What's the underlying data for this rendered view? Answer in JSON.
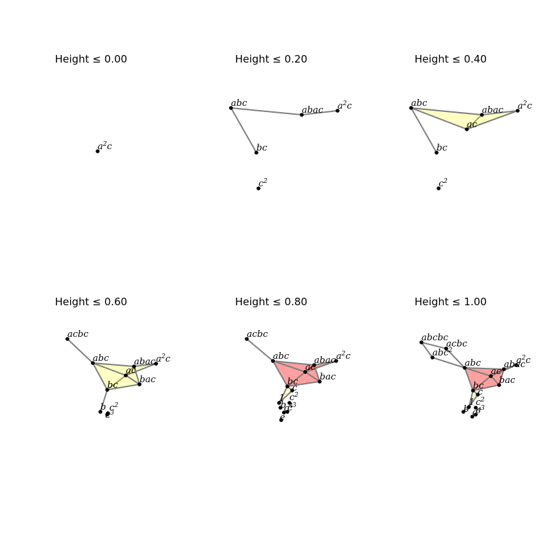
{
  "style": {
    "edge_color": "#808080",
    "vertex_color": "#000000",
    "triangle_fill": {
      "yellow": "#ffffb0",
      "red": "#ff6060"
    },
    "triangle_stroke": {
      "yellow": "#8a8a30",
      "red": "#902020"
    }
  },
  "panels": [
    {
      "title": "Height ≤ 0.00",
      "vertices": [
        {
          "id": "a2c",
          "base": "a",
          "sup": "2",
          "tail": "c"
        }
      ],
      "edges": [],
      "triangles": []
    },
    {
      "title": "Height ≤ 0.20",
      "vertices": [
        {
          "id": "abc",
          "base": "abc"
        },
        {
          "id": "abac",
          "base": "abac"
        },
        {
          "id": "a2c",
          "base": "a",
          "sup": "2",
          "tail": "c"
        },
        {
          "id": "bc",
          "base": "bc"
        },
        {
          "id": "c2",
          "base": "c",
          "sup": "2"
        }
      ],
      "edges": [
        [
          "abc",
          "abac"
        ],
        [
          "abac",
          "a2c"
        ],
        [
          "abc",
          "bc"
        ]
      ],
      "triangles": []
    },
    {
      "title": "Height ≤ 0.40",
      "vertices": [
        {
          "id": "abc",
          "base": "abc"
        },
        {
          "id": "abac",
          "base": "abac"
        },
        {
          "id": "a2c",
          "base": "a",
          "sup": "2",
          "tail": "c"
        },
        {
          "id": "ac",
          "base": "ac"
        },
        {
          "id": "bc",
          "base": "bc"
        },
        {
          "id": "c2",
          "base": "c",
          "sup": "2"
        }
      ],
      "edges": [
        [
          "abc",
          "abac"
        ],
        [
          "abac",
          "a2c"
        ],
        [
          "abc",
          "ac"
        ],
        [
          "ac",
          "a2c"
        ],
        [
          "abc",
          "bc"
        ]
      ],
      "triangles": [
        {
          "v": [
            "abc",
            "abac",
            "ac"
          ],
          "color": "yellow"
        },
        {
          "v": [
            "abac",
            "a2c",
            "ac"
          ],
          "color": "yellow"
        }
      ]
    },
    {
      "title": "Height ≤ 0.60",
      "vertices": [
        {
          "id": "acbc",
          "base": "acbc"
        },
        {
          "id": "abc",
          "base": "abc"
        },
        {
          "id": "abac",
          "base": "abac"
        },
        {
          "id": "a2c",
          "base": "a",
          "sup": "2",
          "tail": "c"
        },
        {
          "id": "ac",
          "base": "ac"
        },
        {
          "id": "bac",
          "base": "bac"
        },
        {
          "id": "bc",
          "base": "bc"
        },
        {
          "id": "b",
          "base": "b"
        },
        {
          "id": "c2",
          "base": "c",
          "sup": "2"
        },
        {
          "id": "c3",
          "base": "c",
          "sup": "3"
        }
      ],
      "edges": [
        [
          "acbc",
          "abc"
        ],
        [
          "abc",
          "abac"
        ],
        [
          "abac",
          "a2c"
        ],
        [
          "abc",
          "ac"
        ],
        [
          "ac",
          "a2c"
        ],
        [
          "abc",
          "bc"
        ],
        [
          "bc",
          "bac"
        ],
        [
          "ac",
          "bac"
        ],
        [
          "bac",
          "abac"
        ],
        [
          "bc",
          "b"
        ]
      ],
      "triangles": [
        {
          "v": [
            "abc",
            "abac",
            "ac"
          ],
          "color": "yellow"
        },
        {
          "v": [
            "abac",
            "a2c",
            "ac"
          ],
          "color": "yellow"
        },
        {
          "v": [
            "abc",
            "ac",
            "bc"
          ],
          "color": "yellow"
        },
        {
          "v": [
            "ac",
            "bac",
            "bc"
          ],
          "color": "yellow"
        },
        {
          "v": [
            "abac",
            "bac",
            "ac"
          ],
          "color": "yellow"
        }
      ]
    },
    {
      "title": "Height ≤ 0.80",
      "vertices": [
        {
          "id": "acbc",
          "base": "acbc"
        },
        {
          "id": "abc",
          "base": "abc"
        },
        {
          "id": "abac",
          "base": "abac"
        },
        {
          "id": "a2c",
          "base": "a",
          "sup": "2",
          "tail": "c"
        },
        {
          "id": "ac",
          "base": "ac"
        },
        {
          "id": "bac",
          "base": "bac"
        },
        {
          "id": "bc",
          "base": "bc"
        },
        {
          "id": "c",
          "base": "c"
        },
        {
          "id": "1",
          "base": "1"
        },
        {
          "id": "c2",
          "base": "c",
          "sup": "2"
        },
        {
          "id": "b",
          "base": "b"
        },
        {
          "id": "c3",
          "base": "c",
          "sup": "3"
        },
        {
          "id": "c4",
          "base": "c",
          "sup": "4"
        },
        {
          "id": "e",
          "base": "e"
        }
      ],
      "edges": [
        [
          "acbc",
          "abc"
        ],
        [
          "abc",
          "abac"
        ],
        [
          "abac",
          "a2c"
        ],
        [
          "abc",
          "ac"
        ],
        [
          "ac",
          "a2c"
        ],
        [
          "abc",
          "bc"
        ],
        [
          "bc",
          "bac"
        ],
        [
          "ac",
          "bac"
        ],
        [
          "bac",
          "abac"
        ],
        [
          "bc",
          "ac"
        ],
        [
          "bc",
          "1"
        ],
        [
          "bc",
          "c"
        ],
        [
          "1",
          "c"
        ]
      ],
      "triangles": [
        {
          "v": [
            "abc",
            "abac",
            "ac"
          ],
          "color": "red"
        },
        {
          "v": [
            "abac",
            "a2c",
            "ac"
          ],
          "color": "red"
        },
        {
          "v": [
            "abc",
            "ac",
            "bc"
          ],
          "color": "red"
        },
        {
          "v": [
            "ac",
            "bac",
            "bc"
          ],
          "color": "red"
        },
        {
          "v": [
            "abac",
            "bac",
            "ac"
          ],
          "color": "red"
        },
        {
          "v": [
            "bc",
            "c",
            "1"
          ],
          "color": "yellow"
        }
      ]
    },
    {
      "title": "Height ≤ 1.00",
      "vertices": [
        {
          "id": "abcbc",
          "base": "abcbc"
        },
        {
          "id": "acbc",
          "base": "acbc"
        },
        {
          "id": "abc2",
          "base": "abc",
          "sup": "2"
        },
        {
          "id": "abc",
          "base": "abc"
        },
        {
          "id": "abac",
          "base": "abac"
        },
        {
          "id": "a2c",
          "base": "a",
          "sup": "2",
          "tail": "c"
        },
        {
          "id": "ac",
          "base": "ac"
        },
        {
          "id": "bac",
          "base": "bac"
        },
        {
          "id": "bc",
          "base": "bc"
        },
        {
          "id": "c",
          "base": "c"
        },
        {
          "id": "1",
          "base": "1"
        },
        {
          "id": "c2",
          "base": "c",
          "sup": "2"
        },
        {
          "id": "b",
          "base": "b"
        },
        {
          "id": "c3",
          "base": "c",
          "sup": "3"
        },
        {
          "id": "c4",
          "base": "c",
          "sup": "4"
        }
      ],
      "edges": [
        [
          "abcbc",
          "acbc"
        ],
        [
          "abcbc",
          "abc2"
        ],
        [
          "acbc",
          "abc"
        ],
        [
          "abc2",
          "abc"
        ],
        [
          "abc",
          "abac"
        ],
        [
          "abac",
          "a2c"
        ],
        [
          "abc",
          "ac"
        ],
        [
          "ac",
          "a2c"
        ],
        [
          "abc",
          "bc"
        ],
        [
          "bc",
          "bac"
        ],
        [
          "ac",
          "bac"
        ],
        [
          "bac",
          "abac"
        ],
        [
          "bc",
          "ac"
        ],
        [
          "bc",
          "1"
        ],
        [
          "bc",
          "c"
        ],
        [
          "1",
          "c"
        ],
        [
          "1",
          "b"
        ]
      ],
      "triangles": [
        {
          "v": [
            "abc",
            "abac",
            "ac"
          ],
          "color": "red"
        },
        {
          "v": [
            "abac",
            "a2c",
            "ac"
          ],
          "color": "red"
        },
        {
          "v": [
            "abc",
            "ac",
            "bc"
          ],
          "color": "red"
        },
        {
          "v": [
            "ac",
            "bac",
            "bc"
          ],
          "color": "red"
        },
        {
          "v": [
            "abac",
            "bac",
            "ac"
          ],
          "color": "red"
        },
        {
          "v": [
            "bc",
            "c",
            "1"
          ],
          "color": "yellow"
        }
      ]
    }
  ]
}
